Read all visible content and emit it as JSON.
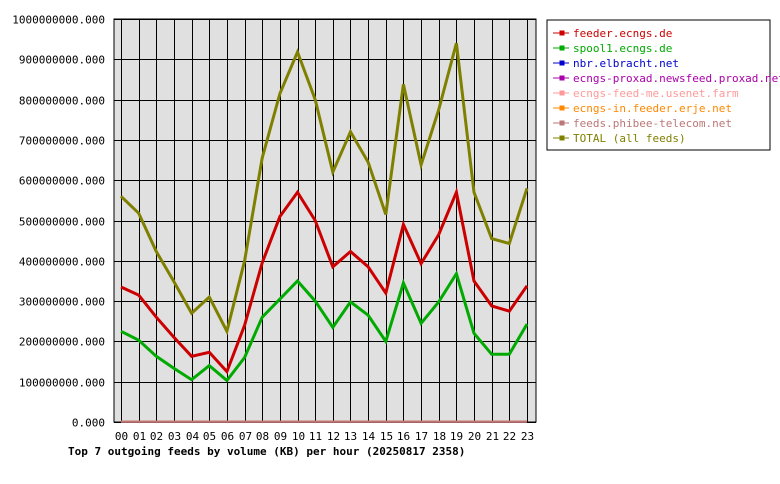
{
  "chart_data": {
    "type": "line",
    "title": "Top 7 outgoing feeds by volume (KB) per hour (20250817 2358)",
    "xlabel": "",
    "ylabel": "",
    "x": [
      "00",
      "01",
      "02",
      "03",
      "04",
      "05",
      "06",
      "07",
      "08",
      "09",
      "10",
      "11",
      "12",
      "13",
      "14",
      "15",
      "16",
      "17",
      "18",
      "19",
      "20",
      "21",
      "22",
      "23"
    ],
    "ylim": [
      0,
      1000000000
    ],
    "yticks": [
      0,
      100000000,
      200000000,
      300000000,
      400000000,
      500000000,
      600000000,
      700000000,
      800000000,
      900000000,
      1000000000
    ],
    "ytick_labels": [
      "0.000",
      "100000000.000",
      "200000000.000",
      "300000000.000",
      "400000000.000",
      "500000000.000",
      "600000000.000",
      "700000000.000",
      "800000000.000",
      "900000000.000",
      "1000000000.000"
    ],
    "grid": true,
    "legend_position": "right",
    "series": [
      {
        "name": "feeder.ecngs.de",
        "color": "#cc0000",
        "values": [
          335000000,
          315000000,
          260000000,
          210000000,
          163000000,
          173000000,
          125000000,
          240000000,
          395000000,
          510000000,
          570000000,
          500000000,
          385000000,
          423000000,
          385000000,
          320000000,
          490000000,
          393000000,
          465000000,
          570000000,
          350000000,
          288000000,
          275000000,
          338000000
        ]
      },
      {
        "name": "spool1.ecngs.de",
        "color": "#00aa00",
        "values": [
          225000000,
          203000000,
          163000000,
          133000000,
          105000000,
          140000000,
          103000000,
          160000000,
          260000000,
          305000000,
          350000000,
          300000000,
          235000000,
          298000000,
          265000000,
          200000000,
          345000000,
          245000000,
          298000000,
          368000000,
          220000000,
          168000000,
          168000000,
          243000000
        ]
      },
      {
        "name": "nbr.elbracht.net",
        "color": "#0000cc",
        "values": [
          1000000,
          1000000,
          1000000,
          1000000,
          1000000,
          1000000,
          1000000,
          1000000,
          1000000,
          1000000,
          1000000,
          1000000,
          1000000,
          1000000,
          1000000,
          1000000,
          1000000,
          1000000,
          1000000,
          1000000,
          1000000,
          1000000,
          1000000,
          1000000
        ]
      },
      {
        "name": "ecngs-proxad.newsfeed.proxad.net",
        "color": "#aa00aa",
        "values": [
          1000000,
          1000000,
          1000000,
          1000000,
          1000000,
          1000000,
          1000000,
          1000000,
          1000000,
          1000000,
          1000000,
          1000000,
          1000000,
          1000000,
          1000000,
          1000000,
          1000000,
          1000000,
          1000000,
          1000000,
          1000000,
          1000000,
          1000000,
          1000000
        ]
      },
      {
        "name": "ecngs-feed-me.usenet.farm",
        "color": "#ff9999",
        "values": [
          1000000,
          1000000,
          1000000,
          1000000,
          1000000,
          1000000,
          1000000,
          1000000,
          1000000,
          1000000,
          1000000,
          1000000,
          1000000,
          1000000,
          1000000,
          1000000,
          1000000,
          1000000,
          1000000,
          1000000,
          1000000,
          1000000,
          1000000,
          1000000
        ]
      },
      {
        "name": "ecngs-in.feeder.erje.net",
        "color": "#ff8800",
        "values": [
          1000000,
          1000000,
          1000000,
          1000000,
          1000000,
          1000000,
          1000000,
          1000000,
          1000000,
          1000000,
          1000000,
          1000000,
          1000000,
          1000000,
          1000000,
          1000000,
          1000000,
          1000000,
          1000000,
          1000000,
          1000000,
          1000000,
          1000000,
          1000000
        ]
      },
      {
        "name": "feeds.phibee-telecom.net",
        "color": "#bb7777",
        "values": [
          1000000,
          1000000,
          1000000,
          1000000,
          1000000,
          1000000,
          1000000,
          1000000,
          1000000,
          1000000,
          1000000,
          1000000,
          1000000,
          1000000,
          1000000,
          1000000,
          1000000,
          1000000,
          1000000,
          1000000,
          1000000,
          1000000,
          1000000,
          1000000
        ]
      },
      {
        "name": "TOTAL (all feeds)",
        "color": "#808000",
        "values": [
          560000000,
          518000000,
          423000000,
          348000000,
          270000000,
          310000000,
          225000000,
          400000000,
          655000000,
          815000000,
          918000000,
          800000000,
          620000000,
          720000000,
          645000000,
          515000000,
          838000000,
          638000000,
          775000000,
          940000000,
          570000000,
          455000000,
          443000000,
          580000000
        ]
      }
    ]
  }
}
